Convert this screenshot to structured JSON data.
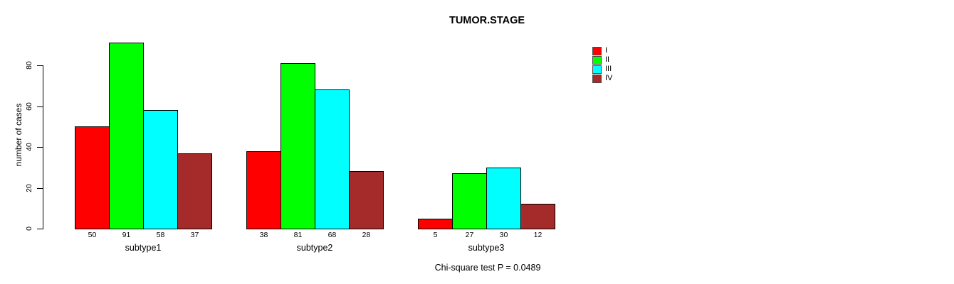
{
  "title": "TUMOR.STAGE",
  "annotation": "Chi-square test P = 0.0489",
  "colors": {
    "background": "#ffffff",
    "text": "#000000",
    "bar_border": "#000000",
    "stage_I": "#ff0000",
    "stage_II": "#00ff00",
    "stage_III": "#00ffff",
    "stage_IV": "#a52a2a"
  },
  "chart_data": {
    "type": "bar",
    "grouped": true,
    "title": "TUMOR.STAGE",
    "xlabel": "",
    "ylabel": "number of cases",
    "categories": [
      "subtype1",
      "subtype2",
      "subtype3"
    ],
    "series": [
      {
        "name": "I",
        "color": "#ff0000",
        "values": [
          50,
          38,
          5
        ]
      },
      {
        "name": "II",
        "color": "#00ff00",
        "values": [
          91,
          81,
          27
        ]
      },
      {
        "name": "III",
        "color": "#00ffff",
        "values": [
          58,
          68,
          30
        ]
      },
      {
        "name": "IV",
        "color": "#a52a2a",
        "values": [
          37,
          28,
          12
        ]
      }
    ],
    "bar_value_labels": true,
    "yticks": [
      0,
      20,
      40,
      60,
      80
    ],
    "ylim": [
      0,
      91
    ],
    "grid": false,
    "legend_position": "top-right",
    "legend_entries": [
      "I",
      "II",
      "III",
      "IV"
    ]
  }
}
